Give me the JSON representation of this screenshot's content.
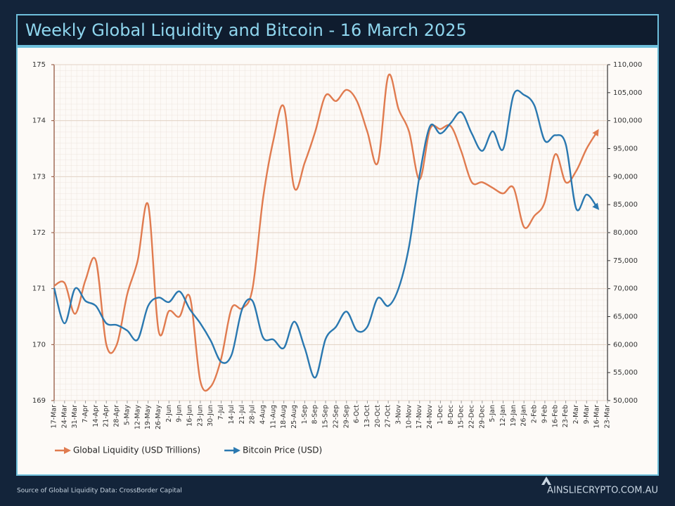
{
  "chart_data": {
    "type": "line",
    "title": "Weekly Global Liquidity and Bitcoin - 16 March 2025",
    "categories": [
      "17-Mar",
      "24-Mar",
      "31-Mar",
      "7-Apr",
      "14-Apr",
      "21-Apr",
      "28-Apr",
      "5-May",
      "12-May",
      "19-May",
      "26-May",
      "2-Jun",
      "9-Jun",
      "16-Jun",
      "23-Jun",
      "30-Jun",
      "7-Jul",
      "14-Jul",
      "21-Jul",
      "28-Jul",
      "4-Aug",
      "11-Aug",
      "18-Aug",
      "25-Aug",
      "1-Sep",
      "8-Sep",
      "15-Sep",
      "22-Sep",
      "29-Sep",
      "6-Oct",
      "13-Oct",
      "20-Oct",
      "27-Oct",
      "3-Nov",
      "10-Nov",
      "17-Nov",
      "24-Nov",
      "1-Dec",
      "8-Dec",
      "15-Dec",
      "22-Dec",
      "29-Dec",
      "5-Jan",
      "12-Jan",
      "19-Jan",
      "26-Jan",
      "2-Feb",
      "9-Feb",
      "16-Feb",
      "23-Feb",
      "2-Mar",
      "9-Mar",
      "16-Mar",
      "23-Mar"
    ],
    "series": [
      {
        "name": "Global Liquidity (USD Trillions)",
        "color": "#e07b4f",
        "axis": "y",
        "values": [
          171.05,
          171.1,
          170.55,
          171.15,
          171.5,
          170.0,
          170.0,
          170.9,
          171.5,
          172.5,
          170.25,
          170.6,
          170.5,
          170.85,
          169.35,
          169.25,
          169.75,
          170.65,
          170.65,
          171.0,
          172.6,
          173.65,
          174.25,
          172.8,
          173.25,
          173.8,
          174.45,
          174.35,
          174.55,
          174.35,
          173.8,
          173.25,
          174.8,
          174.2,
          173.8,
          172.95,
          173.85,
          173.85,
          173.9,
          173.45,
          172.9,
          172.9,
          172.8,
          172.7,
          172.8,
          172.1,
          172.3,
          172.55,
          173.4,
          172.9,
          173.1,
          173.5,
          173.8,
          null
        ]
      },
      {
        "name": "Bitcoin Price (USD)",
        "color": "#2a78b0",
        "axis": "y2",
        "values": [
          70100,
          63800,
          70000,
          67800,
          66900,
          63800,
          63500,
          62500,
          60900,
          66900,
          68400,
          67600,
          69500,
          66300,
          63800,
          60700,
          56900,
          58200,
          66300,
          67800,
          61300,
          60900,
          59400,
          64100,
          59400,
          54100,
          61000,
          63200,
          65900,
          62500,
          63200,
          68300,
          66900,
          70100,
          77600,
          90200,
          99000,
          97700,
          99600,
          101500,
          97700,
          94600,
          98100,
          94900,
          104600,
          104600,
          102700,
          96400,
          97400,
          95800,
          84300,
          86800,
          84500,
          null
        ]
      }
    ],
    "ylim": [
      169,
      175
    ],
    "yticks": [
      169,
      170,
      171,
      172,
      173,
      174,
      175
    ],
    "y2lim": [
      50000,
      110000
    ],
    "y2ticks": [
      {
        "value": 50000,
        "label": "50,000"
      },
      {
        "value": 55000,
        "label": "55,000"
      },
      {
        "value": 60000,
        "label": "60,000"
      },
      {
        "value": 65000,
        "label": "65,000"
      },
      {
        "value": 70000,
        "label": "70,000"
      },
      {
        "value": 75000,
        "label": "75,000"
      },
      {
        "value": 80000,
        "label": "80,000"
      },
      {
        "value": 85000,
        "label": "85,000"
      },
      {
        "value": 90000,
        "label": "90,000"
      },
      {
        "value": 95000,
        "label": "95,000"
      },
      {
        "value": 100000,
        "label": "100,000"
      },
      {
        "value": 105000,
        "label": "105,000"
      },
      {
        "value": 110000,
        "label": "110,000"
      }
    ],
    "grid": true,
    "legend": "bottom"
  },
  "footer": {
    "source": "Source of Global Liquidity Data: CrossBorder Capital",
    "brand": "AINSLIECRYPTO.COM.AU"
  }
}
